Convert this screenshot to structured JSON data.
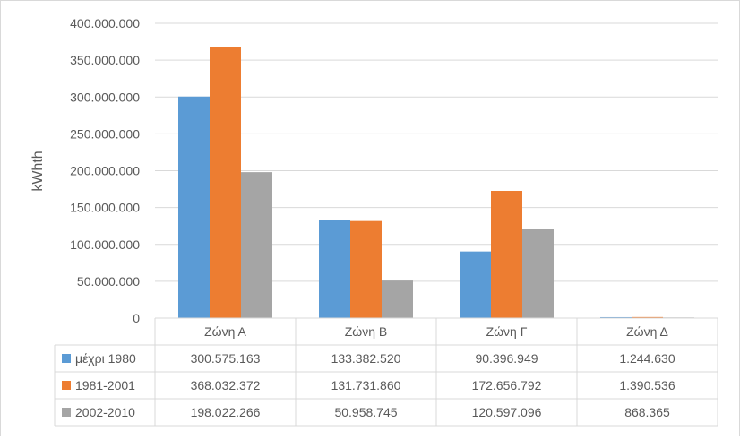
{
  "chart_data": {
    "type": "bar",
    "ylabel": "kWhth",
    "ylim": [
      0,
      400000000
    ],
    "yticks": [
      0,
      50000000,
      100000000,
      150000000,
      200000000,
      250000000,
      300000000,
      350000000,
      400000000
    ],
    "ytick_labels": [
      "0",
      "50.000.000",
      "100.000.000",
      "150.000.000",
      "200.000.000",
      "250.000.000",
      "300.000.000",
      "350.000.000",
      "400.000.000"
    ],
    "grid": true,
    "legend": "data-table",
    "categories": [
      "Ζώνη Α",
      "Ζώνη Β",
      "Ζώνη Γ",
      "Ζώνη Δ"
    ],
    "series": [
      {
        "name": "μέχρι 1980",
        "color": "#5b9bd5",
        "values": [
          300575163,
          133382520,
          90396949,
          1244630
        ],
        "labels": [
          "300.575.163",
          "133.382.520",
          "90.396.949",
          "1.244.630"
        ]
      },
      {
        "name": "1981-2001",
        "color": "#ed7d31",
        "values": [
          368032372,
          131731860,
          172656792,
          1390536
        ],
        "labels": [
          "368.032.372",
          "131.731.860",
          "172.656.792",
          "1.390.536"
        ]
      },
      {
        "name": "2002-2010",
        "color": "#a5a5a5",
        "values": [
          198022266,
          50958745,
          120597096,
          868365
        ],
        "labels": [
          "198.022.266",
          "50.958.745",
          "120.597.096",
          "868.365"
        ]
      }
    ]
  }
}
